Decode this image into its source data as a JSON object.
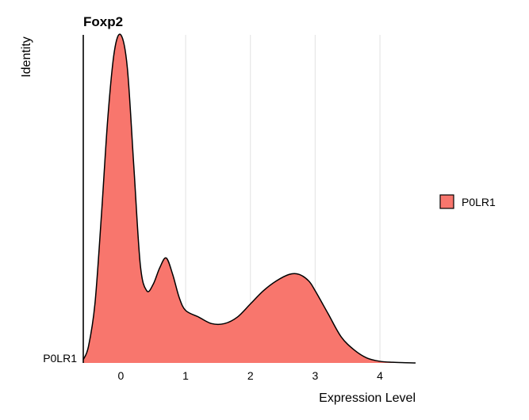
{
  "chart_data": {
    "type": "area",
    "title": "Foxp2",
    "xlabel": "Expression Level",
    "ylabel": "Identity",
    "xlim": [
      -0.58,
      4.55
    ],
    "x_ticks": [
      0,
      1,
      2,
      3,
      4
    ],
    "y_categories": [
      "P0LR1"
    ],
    "grid": "vertical major gridlines",
    "legend_position": "right",
    "series": [
      {
        "name": "P0LR1",
        "color": "#F8766D",
        "x": [
          -0.58,
          -0.5,
          -0.4,
          -0.3,
          -0.2,
          -0.1,
          0.0,
          0.1,
          0.2,
          0.3,
          0.4,
          0.5,
          0.6,
          0.7,
          0.8,
          0.9,
          1.0,
          1.2,
          1.4,
          1.6,
          1.8,
          2.0,
          2.2,
          2.4,
          2.6,
          2.75,
          2.9,
          3.0,
          3.2,
          3.4,
          3.6,
          3.8,
          4.0,
          4.2,
          4.55
        ],
        "density": [
          0.01,
          0.05,
          0.18,
          0.45,
          0.75,
          0.95,
          1.0,
          0.9,
          0.6,
          0.3,
          0.22,
          0.24,
          0.29,
          0.32,
          0.27,
          0.2,
          0.16,
          0.14,
          0.12,
          0.12,
          0.14,
          0.18,
          0.22,
          0.25,
          0.27,
          0.27,
          0.25,
          0.22,
          0.15,
          0.08,
          0.04,
          0.015,
          0.005,
          0.002,
          0.0
        ]
      }
    ]
  }
}
